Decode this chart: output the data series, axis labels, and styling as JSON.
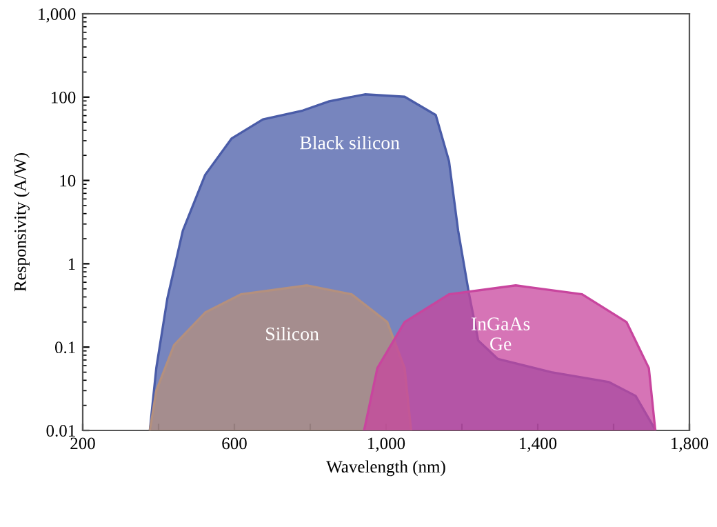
{
  "chart_data": {
    "type": "area",
    "xlabel": "Wavelength (nm)",
    "ylabel": "Responsivity (A/W)",
    "log": "y",
    "xlim": [
      200,
      1800
    ],
    "xticks": [
      200,
      {
        "value": 400,
        "label": null
      },
      600,
      {
        "value": 800,
        "label": null
      },
      {
        "value": 1000,
        "label": "1,000"
      },
      {
        "value": 1200,
        "label": null
      },
      {
        "value": 1400,
        "label": "1,400"
      },
      {
        "value": 1600,
        "label": null
      },
      {
        "value": 1800,
        "label": "1,800"
      }
    ],
    "ylim": [
      0.01,
      1000
    ],
    "yticks": [
      0.01,
      0.1,
      1,
      10,
      100,
      {
        "value": 1000,
        "label": "1,000"
      }
    ],
    "grid": false,
    "legend": false,
    "series": [
      {
        "name": "Black silicon",
        "color": "#4a5ca8",
        "x": [
          377,
          394,
          423,
          464,
          523,
          593,
          675,
          780,
          850,
          944,
          1049,
          1131,
          1166,
          1190,
          1219,
          1243,
          1295,
          1436,
          1588,
          1658,
          1711
        ],
        "values": [
          0.01,
          0.056,
          0.38,
          2.5,
          11.7,
          32,
          54,
          69,
          89,
          108,
          101,
          61,
          17,
          2.5,
          0.43,
          0.12,
          0.072,
          0.05,
          0.038,
          0.026,
          0.01
        ]
      },
      {
        "name": "Silicon",
        "color": "#b4907e",
        "x": [
          377,
          394,
          441,
          523,
          617,
          792,
          909,
          1003,
          1049,
          1066
        ],
        "values": [
          0.01,
          0.03,
          0.106,
          0.26,
          0.43,
          0.55,
          0.43,
          0.2,
          0.056,
          0.01
        ]
      },
      {
        "name": "InGaAs\nGe",
        "color": "#c8459e",
        "x": [
          942,
          977,
          1049,
          1166,
          1342,
          1517,
          1634,
          1693,
          1710
        ],
        "values": [
          0.01,
          0.056,
          0.2,
          0.43,
          0.55,
          0.43,
          0.2,
          0.056,
          0.01
        ]
      }
    ]
  }
}
